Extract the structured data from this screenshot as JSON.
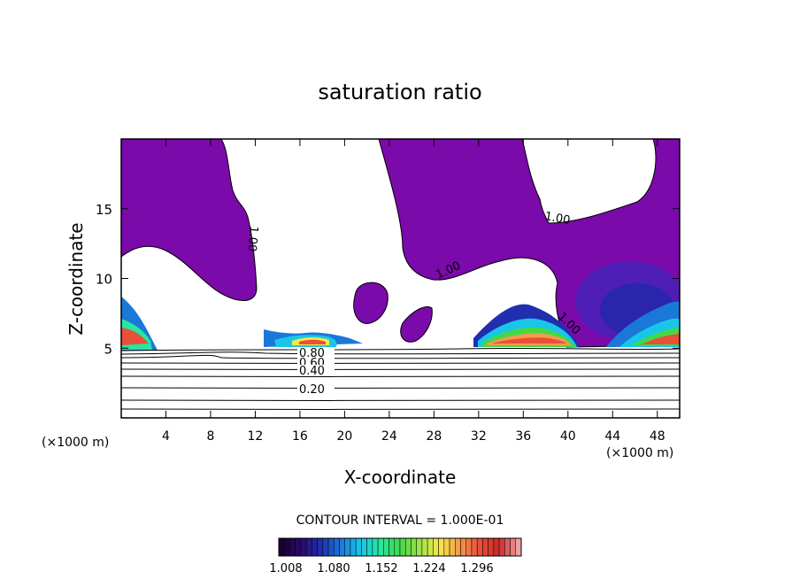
{
  "chart_data": {
    "type": "contour",
    "title": "saturation ratio",
    "xlabel": "X-coordinate",
    "ylabel": "Z-coordinate",
    "x_unit": "(×1000 m)",
    "z_unit": "(×1000 m)",
    "xlim": [
      0,
      50
    ],
    "ylim": [
      0,
      20
    ],
    "x_ticks": [
      "4",
      "8",
      "12",
      "16",
      "20",
      "24",
      "28",
      "32",
      "36",
      "40",
      "44",
      "48"
    ],
    "y_ticks": [
      "5",
      "10",
      "15"
    ],
    "contour_labels": [
      "1.00",
      "1.00",
      "1.00",
      "1.00",
      "0.80",
      "0.60",
      "0.40",
      "0.20"
    ],
    "contour_interval_text": "CONTOUR INTERVAL = 1.000E-01",
    "colorbar": {
      "ticks": [
        "1.008",
        "1.080",
        "1.152",
        "1.224",
        "1.296"
      ],
      "colors": [
        "#1a0033",
        "#2a0a6e",
        "#1f2fb0",
        "#1a78d8",
        "#19c6e8",
        "#27e6a0",
        "#43d84a",
        "#9ee24a",
        "#f5e84a",
        "#f59a4a",
        "#e8503a",
        "#c82a2a",
        "#f0a0a0"
      ]
    },
    "fill_color": "#7a0aaa"
  }
}
